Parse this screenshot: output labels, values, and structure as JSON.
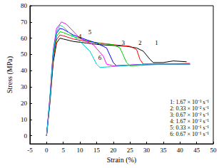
{
  "chart_data": {
    "type": "line",
    "x_label": "Strain (%)",
    "y_label": "Stress (MPa)",
    "xlim": [
      -5,
      50
    ],
    "xticks": [
      -5,
      0,
      5,
      10,
      15,
      20,
      25,
      30,
      35,
      40,
      45,
      50
    ],
    "ylim": [
      -5,
      80
    ],
    "yticks": [
      0,
      10,
      20,
      30,
      40,
      50,
      60,
      70,
      80
    ],
    "grid": false,
    "legend": "lower right",
    "series": [
      {
        "name": "1: 1.67 × 10⁻³ s⁻¹",
        "color": "#000000",
        "x": [
          0,
          1,
          2,
          3,
          4,
          5,
          8,
          12,
          16,
          20,
          24,
          27,
          29,
          31,
          32,
          35,
          38,
          42
        ],
        "values": [
          0,
          20,
          45,
          57,
          60,
          59.5,
          58,
          57,
          56,
          55.5,
          55,
          54,
          52,
          47,
          45,
          45,
          46,
          45.5
        ]
      },
      {
        "name": "2: 0.33 × 10⁻² s⁻¹",
        "color": "#ff0000",
        "x": [
          0,
          1,
          2,
          3,
          4,
          5,
          8,
          12,
          16,
          20,
          25,
          27,
          28,
          29,
          35,
          43
        ],
        "values": [
          0,
          21,
          47,
          59,
          62,
          61.5,
          59.5,
          58,
          57,
          56,
          55,
          53,
          47,
          44,
          44,
          44.5
        ]
      },
      {
        "name": "3: 0.67 × 10⁻² s⁻¹",
        "color": "#00cc00",
        "x": [
          0,
          1,
          2,
          3,
          4,
          5,
          8,
          12,
          15,
          20,
          22,
          24,
          25,
          35,
          43
        ],
        "values": [
          0,
          22,
          49,
          61,
          64,
          63.5,
          61,
          58.5,
          57,
          56,
          54,
          45,
          43,
          44,
          44
        ]
      },
      {
        "name": "4: 1.67 × 10⁻² s⁻¹",
        "color": "#0000ff",
        "x": [
          0,
          1,
          2,
          3,
          4,
          5,
          8,
          12,
          15,
          18,
          20,
          21,
          30,
          43
        ],
        "values": [
          0,
          23,
          51,
          63,
          66,
          65.5,
          62,
          59,
          57,
          54,
          45,
          43,
          44,
          44
        ]
      },
      {
        "name": "5: 0.33 × 10⁻¹ s⁻¹",
        "color": "#ff00ff",
        "x": [
          0,
          1,
          2,
          3,
          4.5,
          6,
          10,
          14,
          17,
          18,
          20,
          30,
          43
        ],
        "values": [
          0,
          24,
          53,
          66,
          70,
          68.5,
          60,
          56,
          49,
          44,
          43,
          44,
          44
        ]
      },
      {
        "name": "6: 0.67 × 10⁻¹ s⁻¹",
        "color": "#00cccc",
        "x": [
          0,
          1,
          2,
          3,
          4,
          5,
          7,
          10,
          13,
          15,
          16,
          30,
          43
        ],
        "values": [
          0,
          23,
          52,
          64,
          68,
          67,
          63,
          58,
          52,
          44,
          42,
          44,
          44
        ]
      }
    ],
    "annotations": [
      {
        "text": "1",
        "x": 33,
        "y": 57
      },
      {
        "text": "2",
        "x": 28,
        "y": 57
      },
      {
        "text": "3",
        "x": 23,
        "y": 57
      },
      {
        "text": "4",
        "x": 10,
        "y": 61
      },
      {
        "text": "5",
        "x": 13,
        "y": 64
      },
      {
        "text": "6",
        "x": 16,
        "y": 48
      }
    ]
  }
}
